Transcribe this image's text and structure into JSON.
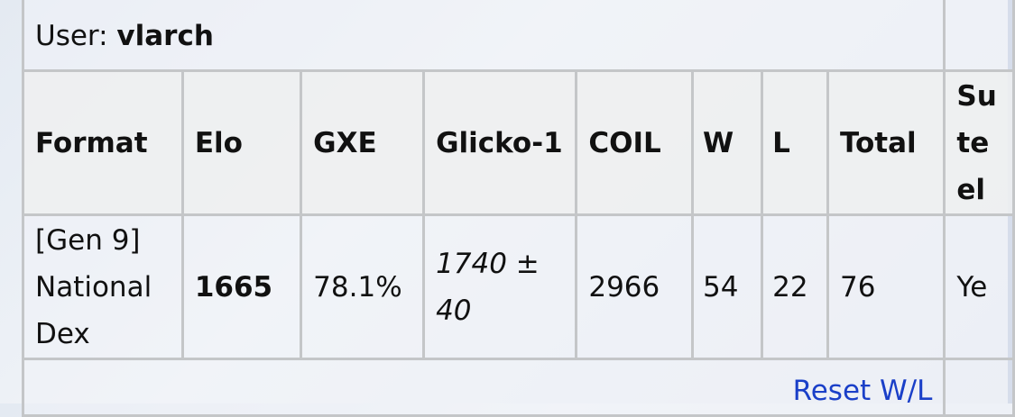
{
  "user": {
    "label": "User:",
    "name": "vlarch"
  },
  "table": {
    "headers": [
      "Format",
      "Elo",
      "GXE",
      "Glicko-1",
      "COIL",
      "W",
      "L",
      "Total",
      "Su te el"
    ],
    "row": {
      "format": "[Gen 9] National Dex",
      "elo": "1665",
      "gxe": "78.1%",
      "glicko": "1740 ± 40",
      "coil": "2966",
      "w": "54",
      "l": "22",
      "total": "76",
      "last": "Ye"
    }
  },
  "footer": {
    "reset_link": "Reset W/L"
  },
  "colors": {
    "link": "#1a3fc8",
    "border": "#c4c6c8"
  }
}
